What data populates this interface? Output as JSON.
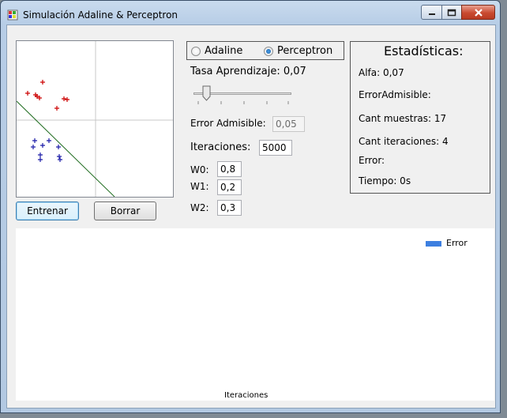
{
  "window": {
    "title": "Simulación Adaline & Perceptron",
    "controls": [
      "minimize-icon",
      "maximize-icon",
      "close-icon"
    ]
  },
  "mode": {
    "options": [
      {
        "label": "Adaline",
        "selected": false
      },
      {
        "label": "Perceptron",
        "selected": true
      }
    ]
  },
  "params": {
    "rate_label": "Tasa Aprendizaje: 0,07",
    "rate_fraction": 0.1,
    "error_label": "Error Admisible:",
    "error_value": "0,05",
    "iter_label": "Iteraciones:",
    "iter_value": "5000",
    "weights": [
      {
        "label": "W0:",
        "value": "0,8"
      },
      {
        "label": "W1:",
        "value": "0,2"
      },
      {
        "label": "W2:",
        "value": "0,3"
      }
    ]
  },
  "stats": {
    "title": "Estadísticas:",
    "alfa": "Alfa: 0,07",
    "error_admisible": "ErrorAdmisible:",
    "cant_muestras": "Cant muestras: 17",
    "cant_iteraciones": "Cant iteraciones: 4",
    "error": "Error:",
    "tiempo": "Tiempo: 0s"
  },
  "buttons": {
    "train": "Entrenar",
    "clear": "Borrar"
  },
  "chart": {
    "legend": "Error",
    "legend_color": "#3d7fe0",
    "xlabel": "Iteraciones"
  },
  "plot": {
    "red_color": "#cc0000",
    "blue_color": "#1a1aa8",
    "line_color": "#1e6b1e"
  }
}
